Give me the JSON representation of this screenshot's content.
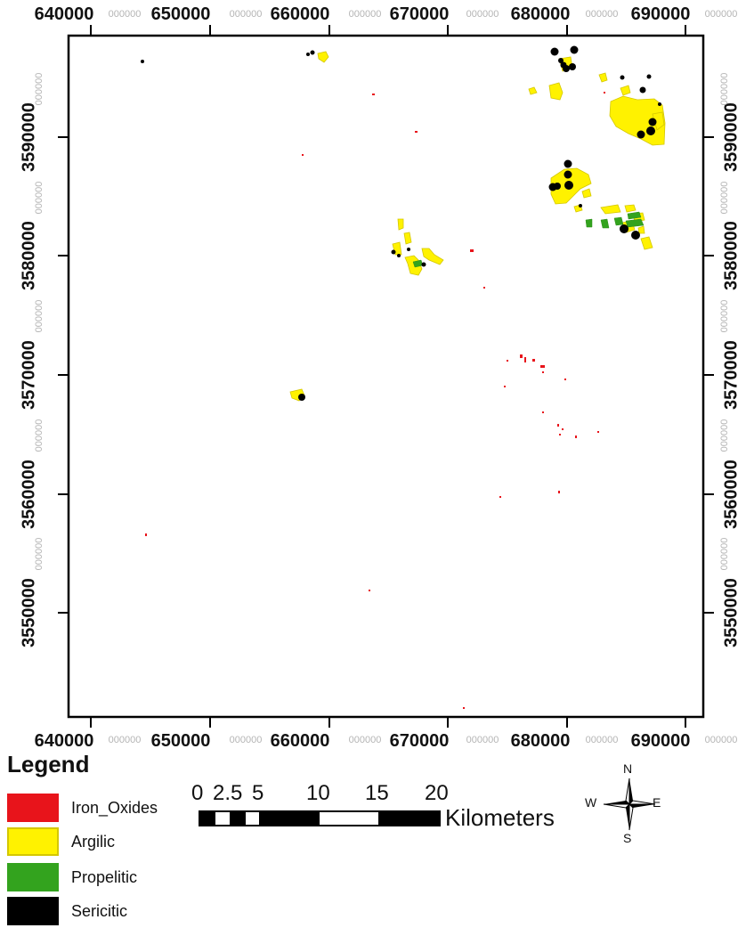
{
  "map": {
    "x_ticks_major": [
      "640000",
      "650000",
      "660000",
      "670000",
      "680000",
      "690000"
    ],
    "x_ticks_minor": [
      "000000",
      "000000",
      "000000",
      "000000",
      "000000",
      "000000"
    ],
    "y_ticks_major": [
      "3590000",
      "3580000",
      "3570000",
      "3560000",
      "3550000"
    ],
    "y_ticks_minor": [
      "000000",
      "000000",
      "000000",
      "000000",
      "000000",
      "000000"
    ]
  },
  "legend": {
    "title": "Legend",
    "items": [
      {
        "label": "Iron_Oxides",
        "color": "#e8141b"
      },
      {
        "label": "Argilic",
        "color": "#fff200"
      },
      {
        "label": "Propelitic",
        "color": "#33a31e"
      },
      {
        "label": "Sericitic",
        "color": "#000000"
      }
    ]
  },
  "scalebar": {
    "numbers": [
      "0",
      "2.5",
      "5",
      "10",
      "15",
      "20"
    ],
    "unit": "Kilometers"
  },
  "north_arrow": {
    "n": "N",
    "s": "S",
    "e": "E",
    "w": "W",
    "icon": "north-arrow-icon"
  }
}
